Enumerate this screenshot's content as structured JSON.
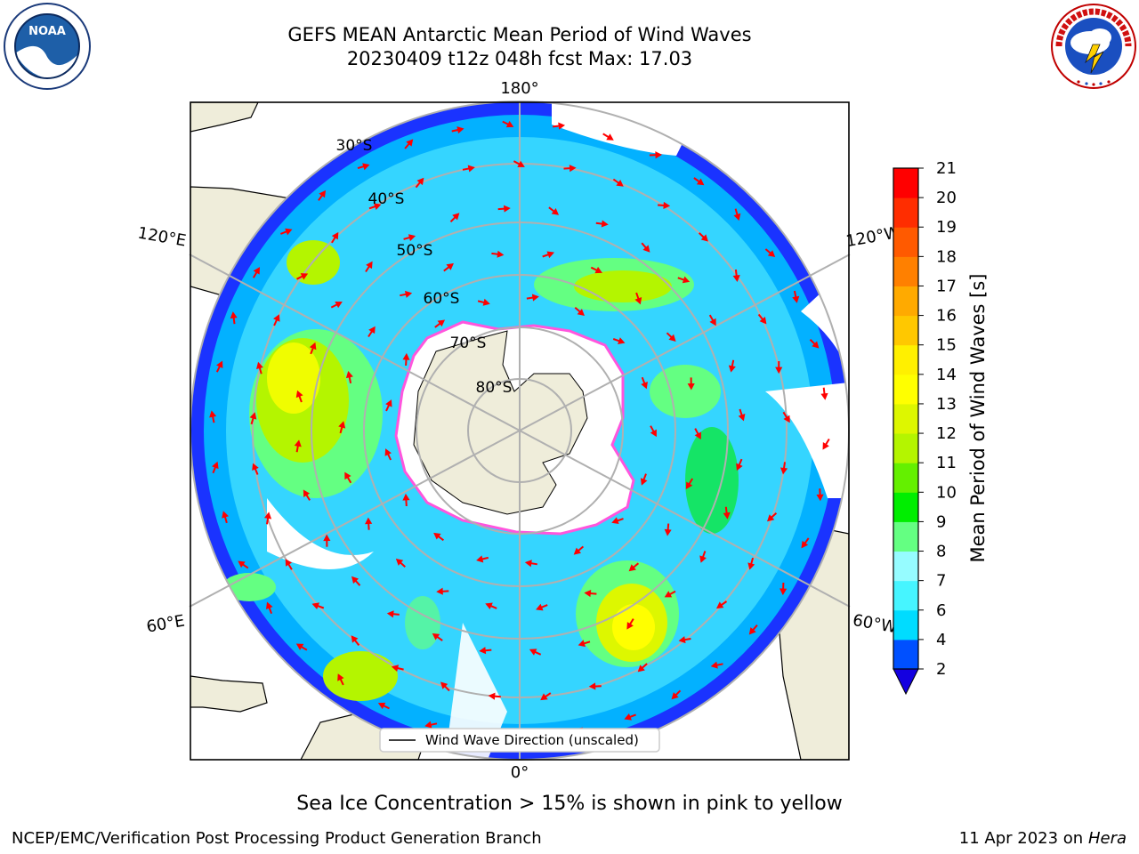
{
  "title": {
    "line1": "GEFS MEAN Antarctic Mean Period of Wind Waves",
    "line2": "20230409 t12z 048h fcst   Max: 17.03"
  },
  "logos": {
    "left": {
      "name": "noaa-logo",
      "text": "NOAA",
      "ring_text": "NATIONAL OCEANIC AND ATMOSPHERIC ADMINISTRATION · U.S. DEPARTMENT OF COMMERCE"
    },
    "right": {
      "name": "nws-logo",
      "ring_text": "NATIONAL WEATHER SERVICE"
    }
  },
  "map": {
    "projection": "south-polar-stereographic",
    "longitude_labels": [
      "180°",
      "120°E",
      "120°W",
      "60°E",
      "60°W",
      "0°"
    ],
    "latitude_labels": [
      "30°S",
      "40°S",
      "50°S",
      "60°S",
      "70°S",
      "80°S"
    ],
    "legend_label": "Wind Wave Direction (unscaled)",
    "colors": {
      "land": "#efedda",
      "antarctica": "#ffffff",
      "sea_ice_edge": "#ff55dd",
      "vector": "#ff0000",
      "grid": "#b0b0b0"
    }
  },
  "colorbar": {
    "label": "Mean Period of Wind Waves [s]",
    "ticks": [
      "2",
      "4",
      "6",
      "7",
      "8",
      "9",
      "10",
      "11",
      "12",
      "13",
      "14",
      "15",
      "16",
      "17",
      "18",
      "19",
      "20",
      "21"
    ],
    "colors": [
      "#0050ff",
      "#00dcff",
      "#46f5ff",
      "#96fcff",
      "#64ff82",
      "#00ee00",
      "#64f000",
      "#b4f500",
      "#ddf700",
      "#ffff00",
      "#fff000",
      "#ffc800",
      "#ffaa00",
      "#ff8000",
      "#ff5a00",
      "#ff2d00",
      "#ff0000"
    ],
    "extend_color": "#1400e0"
  },
  "footer": {
    "sea_ice_note": "Sea Ice Concentration > 15% is shown in pink to yellow",
    "credit": "NCEP/EMC/Verification Post Processing Product Generation Branch",
    "date": "11 Apr 2023 on",
    "machine": "Hera"
  }
}
